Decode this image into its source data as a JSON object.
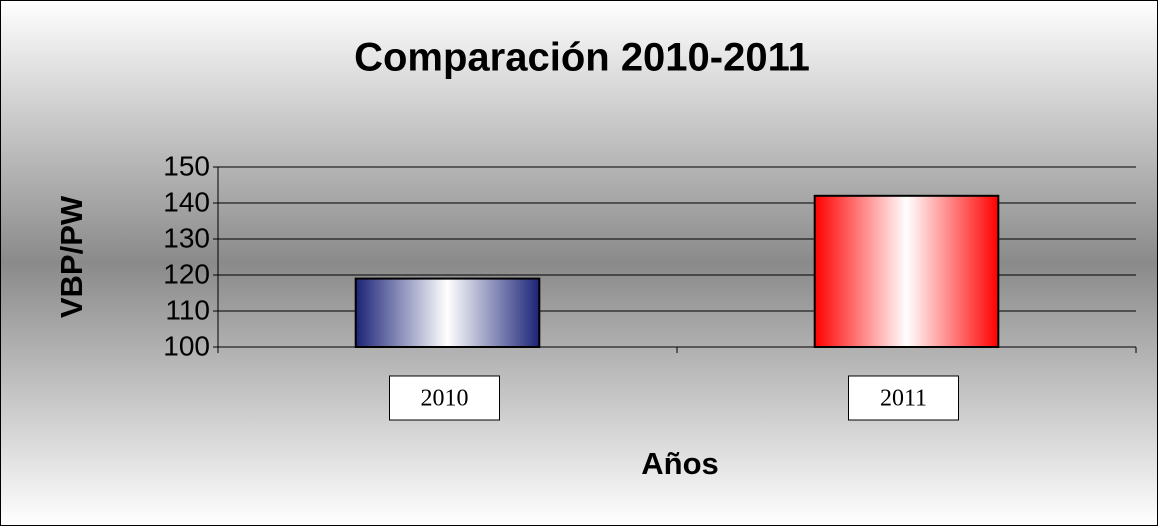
{
  "chart_data": {
    "type": "bar",
    "title": "Comparación 2010-2011",
    "x_label": "Años",
    "y_label": "VBP/PW",
    "categories": [
      "2010",
      "2011"
    ],
    "values": [
      119,
      142
    ],
    "colors": [
      "#1c2477",
      "#ff0000"
    ],
    "ylim": [
      100,
      150
    ],
    "yticks": [
      100,
      110,
      120,
      130,
      140,
      150
    ],
    "grid": true
  }
}
